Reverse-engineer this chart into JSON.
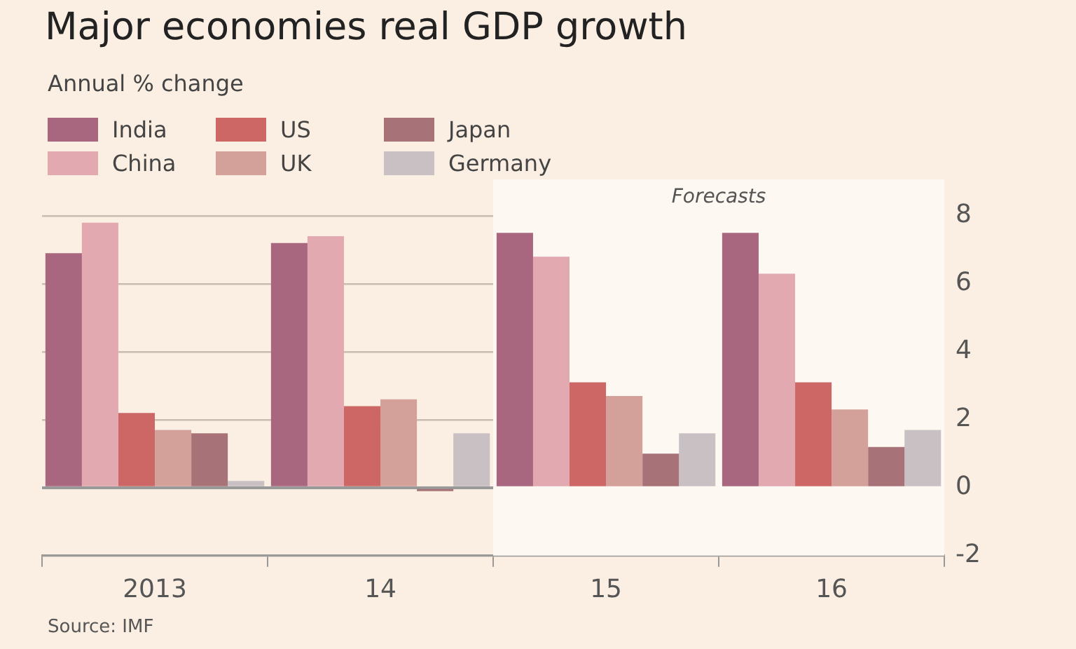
{
  "chart_data": {
    "type": "bar",
    "title": "Major economies real GDP growth",
    "subtitle": "Annual % change",
    "categories": [
      "2013",
      "14",
      "15",
      "16"
    ],
    "series": [
      {
        "name": "India",
        "color": "#a8677f",
        "values": [
          6.9,
          7.2,
          7.5,
          7.5
        ]
      },
      {
        "name": "China",
        "color": "#e3a9b0",
        "values": [
          7.8,
          7.4,
          6.8,
          6.3
        ]
      },
      {
        "name": "US",
        "color": "#cc6766",
        "values": [
          2.2,
          2.4,
          3.1,
          3.1
        ]
      },
      {
        "name": "UK",
        "color": "#d3a199",
        "values": [
          1.7,
          2.6,
          2.7,
          2.3
        ]
      },
      {
        "name": "Japan",
        "color": "#a87378",
        "values": [
          1.6,
          -0.1,
          1.0,
          1.2
        ]
      },
      {
        "name": "Germany",
        "color": "#c9c0c4",
        "values": [
          0.2,
          1.6,
          1.6,
          1.7
        ]
      }
    ],
    "ylim": [
      -2,
      8
    ],
    "yticks": [
      -2,
      0,
      2,
      4,
      6,
      8
    ],
    "grid": "y",
    "legend": "top left",
    "bands": [
      {
        "axis": "x",
        "from": "15",
        "to": "16",
        "label": "Forecasts",
        "color": "#fdf8f2"
      }
    ],
    "annotations": [
      "Source: IMF"
    ]
  }
}
